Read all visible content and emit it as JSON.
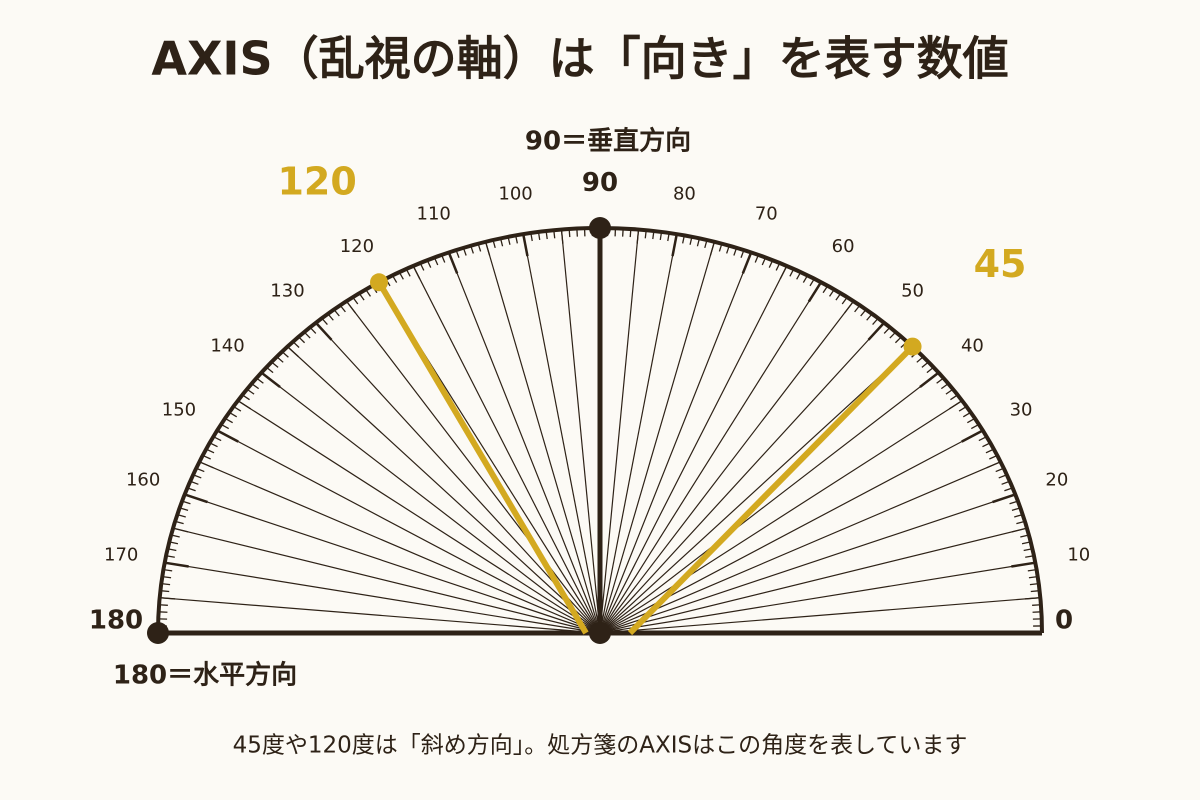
{
  "title": "AXIS（乱視の軸）は「向き」を表す数値",
  "vertical_note": "90＝垂直方向",
  "horizontal_note": "180＝水平方向",
  "scale": {
    "labels": [
      0,
      10,
      20,
      30,
      40,
      50,
      60,
      70,
      80,
      90,
      100,
      110,
      120,
      130,
      140,
      150,
      160,
      170,
      180
    ]
  },
  "highlights": [
    {
      "angle": 120
    },
    {
      "angle": 45
    }
  ],
  "caption": "45度や120度は「斜め方向」。処方箋のAXISはこの角度を表しています"
}
